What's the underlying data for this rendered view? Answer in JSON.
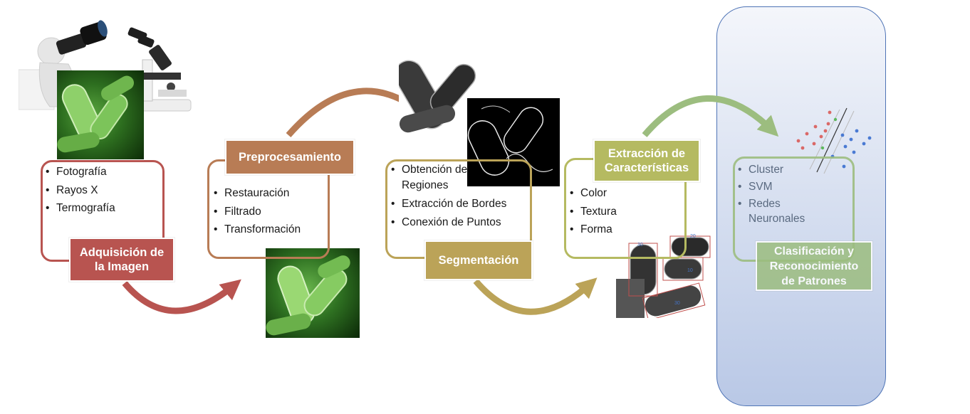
{
  "stages": [
    {
      "id": "adquisicion",
      "title": "Adquisición de la Imagen",
      "title_lines": [
        "Adquisición de",
        "la Imagen"
      ],
      "color": "#b85450",
      "items": [
        "Fotografía",
        "Rayos X",
        "Termografía"
      ]
    },
    {
      "id": "preprocesamiento",
      "title": "Preprocesamiento",
      "title_lines": [
        "Preprocesamiento"
      ],
      "color": "#b87c55",
      "items": [
        "Restauración",
        "Filtrado",
        "Transformación"
      ]
    },
    {
      "id": "segmentacion",
      "title": "Segmentación",
      "title_lines": [
        "Segmentación"
      ],
      "color": "#bba358",
      "items": [
        "Obtención de Regiones",
        "Extracción de Bordes",
        "Conexión de Puntos"
      ],
      "item_lines": [
        [
          "Obtención de",
          "Regiones"
        ],
        [
          "Extracción de Bordes"
        ],
        [
          "Conexión de Puntos"
        ]
      ]
    },
    {
      "id": "extraccion",
      "title": "Extracción de Características",
      "title_lines": [
        "Extracción de",
        "Características"
      ],
      "color": "#b5ba61",
      "items": [
        "Color",
        "Textura",
        "Forma"
      ]
    },
    {
      "id": "clasificacion",
      "title": "Clasificación y Reconocimiento de Patrones",
      "title_lines": [
        "Clasificación y",
        "Reconocimiento",
        "de Patrones"
      ],
      "color": "#9cbd7f",
      "items": [
        "Cluster",
        "SVM",
        "Redes Neuronales"
      ],
      "item_lines": [
        [
          "Cluster"
        ],
        [
          "SVM"
        ],
        [
          "Redes",
          "Neuronales"
        ]
      ]
    }
  ],
  "annotations": {
    "bbox_labels": [
      "30",
      "20",
      "10",
      "30"
    ]
  },
  "colors": {
    "arrow_1": "#b85450",
    "arrow_2": "#b87c55",
    "arrow_3": "#bba358",
    "arrow_4": "#9cbd7f",
    "classification_panel": "#c8d3ea",
    "classification_panel_border": "#4f74b6"
  },
  "icons": [
    "camera-person-icon",
    "microscope-icon",
    "bacteria-photo",
    "edge-map-photo",
    "scatter-classifier-icon"
  ]
}
